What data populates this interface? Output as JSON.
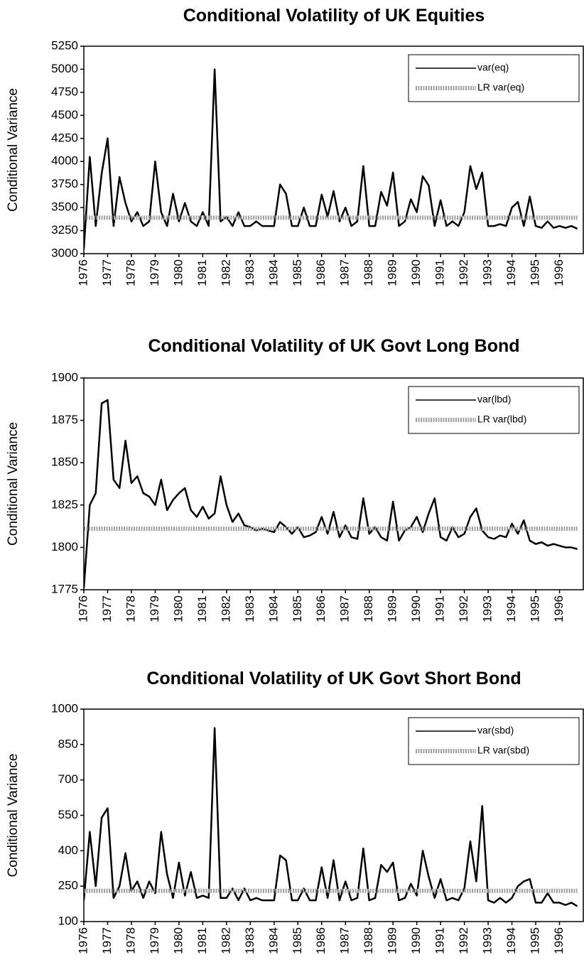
{
  "chart_data": [
    {
      "type": "line",
      "title": "Conditional Volatility of UK Equities",
      "ylabel": "Conditional Variance",
      "categories": [
        "1976",
        null,
        null,
        null,
        "1977",
        null,
        null,
        null,
        "1978",
        null,
        null,
        null,
        "1979",
        null,
        null,
        null,
        "1980",
        null,
        null,
        null,
        "1981",
        null,
        null,
        null,
        "1982",
        null,
        null,
        null,
        "1983",
        null,
        null,
        null,
        "1984",
        null,
        null,
        null,
        "1985",
        null,
        null,
        null,
        "1986",
        null,
        null,
        null,
        "1987",
        null,
        null,
        null,
        "1988",
        null,
        null,
        null,
        "1989",
        null,
        null,
        null,
        "1990",
        null,
        null,
        null,
        "1991",
        null,
        null,
        null,
        "1992",
        null,
        null,
        null,
        "1993",
        null,
        null,
        null,
        "1994",
        null,
        null,
        null,
        "1995",
        null,
        null,
        null,
        "1996",
        null,
        null,
        null
      ],
      "series": [
        {
          "name": "var(eq)",
          "color": "#000000",
          "values": [
            3050,
            4050,
            3300,
            3870,
            4250,
            3300,
            3830,
            3550,
            3350,
            3450,
            3300,
            3350,
            4000,
            3450,
            3300,
            3650,
            3350,
            3550,
            3350,
            3300,
            3450,
            3300,
            5000,
            3350,
            3400,
            3300,
            3450,
            3300,
            3300,
            3350,
            3300,
            3300,
            3300,
            3750,
            3650,
            3300,
            3300,
            3500,
            3300,
            3300,
            3640,
            3400,
            3680,
            3350,
            3500,
            3300,
            3350,
            3950,
            3300,
            3300,
            3670,
            3520,
            3880,
            3300,
            3350,
            3590,
            3450,
            3840,
            3740,
            3300,
            3580,
            3300,
            3350,
            3300,
            3450,
            3950,
            3700,
            3880,
            3300,
            3300,
            3320,
            3300,
            3500,
            3560,
            3300,
            3620,
            3300,
            3280,
            3350,
            3280,
            3300,
            3280,
            3300,
            3270
          ]
        },
        {
          "name": "LR var(eq)",
          "color": "#a0a0a0",
          "pattern": "hatched",
          "values": [
            3390,
            3390,
            3390,
            3390,
            3390,
            3390,
            3390,
            3390,
            3390,
            3390,
            3390,
            3390,
            3390,
            3390,
            3390,
            3390,
            3390,
            3390,
            3390,
            3390,
            3390,
            3390,
            3390,
            3390,
            3390,
            3390,
            3390,
            3390,
            3390,
            3390,
            3390,
            3390,
            3390,
            3390,
            3390,
            3390,
            3390,
            3390,
            3390,
            3390,
            3390,
            3390,
            3390,
            3390,
            3390,
            3390,
            3390,
            3390,
            3390,
            3390,
            3390,
            3390,
            3390,
            3390,
            3390,
            3390,
            3390,
            3390,
            3390,
            3390,
            3390,
            3390,
            3390,
            3390,
            3390,
            3390,
            3390,
            3390,
            3390,
            3390,
            3390,
            3390,
            3390,
            3390,
            3390,
            3390,
            3390,
            3390,
            3390,
            3390,
            3390,
            3390,
            3390,
            3390
          ]
        }
      ],
      "ylim": [
        3000,
        5250
      ],
      "yticks": [
        3000,
        3250,
        3500,
        3750,
        4000,
        4250,
        4500,
        4750,
        5000,
        5250
      ],
      "legend": "upper right"
    },
    {
      "type": "line",
      "title": "Conditional Volatility of UK Govt Long Bond",
      "ylabel": "Conditional Variance",
      "categories": [
        "1976",
        null,
        null,
        null,
        "1977",
        null,
        null,
        null,
        "1978",
        null,
        null,
        null,
        "1979",
        null,
        null,
        null,
        "1980",
        null,
        null,
        null,
        "1981",
        null,
        null,
        null,
        "1982",
        null,
        null,
        null,
        "1983",
        null,
        null,
        null,
        "1984",
        null,
        null,
        null,
        "1985",
        null,
        null,
        null,
        "1986",
        null,
        null,
        null,
        "1987",
        null,
        null,
        null,
        "1988",
        null,
        null,
        null,
        "1989",
        null,
        null,
        null,
        "1990",
        null,
        null,
        null,
        "1991",
        null,
        null,
        null,
        "1992",
        null,
        null,
        null,
        "1993",
        null,
        null,
        null,
        "1994",
        null,
        null,
        null,
        "1995",
        null,
        null,
        null,
        "1996",
        null,
        null,
        null
      ],
      "series": [
        {
          "name": "var(lbd)",
          "color": "#000000",
          "values": [
            1776,
            1825,
            1832,
            1885,
            1887,
            1840,
            1835,
            1863,
            1838,
            1842,
            1832,
            1830,
            1825,
            1840,
            1822,
            1828,
            1832,
            1835,
            1822,
            1818,
            1824,
            1817,
            1820,
            1842,
            1825,
            1815,
            1820,
            1813,
            1812,
            1810,
            1811,
            1810,
            1809,
            1815,
            1812,
            1808,
            1812,
            1806,
            1807,
            1809,
            1818,
            1808,
            1821,
            1806,
            1813,
            1806,
            1805,
            1829,
            1808,
            1812,
            1806,
            1804,
            1827,
            1804,
            1810,
            1812,
            1818,
            1809,
            1820,
            1829,
            1806,
            1804,
            1812,
            1806,
            1808,
            1818,
            1823,
            1810,
            1806,
            1805,
            1807,
            1806,
            1814,
            1808,
            1816,
            1804,
            1802,
            1803,
            1801,
            1802,
            1801,
            1800,
            1800,
            1799
          ]
        },
        {
          "name": "LR var(lbd)",
          "color": "#a0a0a0",
          "pattern": "hatched",
          "values": [
            1811,
            1811,
            1811,
            1811,
            1811,
            1811,
            1811,
            1811,
            1811,
            1811,
            1811,
            1811,
            1811,
            1811,
            1811,
            1811,
            1811,
            1811,
            1811,
            1811,
            1811,
            1811,
            1811,
            1811,
            1811,
            1811,
            1811,
            1811,
            1811,
            1811,
            1811,
            1811,
            1811,
            1811,
            1811,
            1811,
            1811,
            1811,
            1811,
            1811,
            1811,
            1811,
            1811,
            1811,
            1811,
            1811,
            1811,
            1811,
            1811,
            1811,
            1811,
            1811,
            1811,
            1811,
            1811,
            1811,
            1811,
            1811,
            1811,
            1811,
            1811,
            1811,
            1811,
            1811,
            1811,
            1811,
            1811,
            1811,
            1811,
            1811,
            1811,
            1811,
            1811,
            1811,
            1811,
            1811,
            1811,
            1811,
            1811,
            1811,
            1811,
            1811,
            1811,
            1811
          ]
        }
      ],
      "ylim": [
        1775,
        1900
      ],
      "yticks": [
        1775,
        1800,
        1825,
        1850,
        1875,
        1900
      ],
      "legend": "upper right"
    },
    {
      "type": "line",
      "title": "Conditional Volatility of UK Govt Short Bond",
      "ylabel": "Conditional Variance",
      "categories": [
        "1976",
        null,
        null,
        null,
        "1977",
        null,
        null,
        null,
        "1978",
        null,
        null,
        null,
        "1979",
        null,
        null,
        null,
        "1980",
        null,
        null,
        null,
        "1981",
        null,
        null,
        null,
        "1982",
        null,
        null,
        null,
        "1983",
        null,
        null,
        null,
        "1984",
        null,
        null,
        null,
        "1985",
        null,
        null,
        null,
        "1986",
        null,
        null,
        null,
        "1987",
        null,
        null,
        null,
        "1988",
        null,
        null,
        null,
        "1989",
        null,
        null,
        null,
        "1990",
        null,
        null,
        null,
        "1991",
        null,
        null,
        null,
        "1992",
        null,
        null,
        null,
        "1993",
        null,
        null,
        null,
        "1994",
        null,
        null,
        null,
        "1995",
        null,
        null,
        null,
        "1996",
        null,
        null,
        null
      ],
      "series": [
        {
          "name": "var(sbd)",
          "color": "#000000",
          "values": [
            190,
            480,
            250,
            540,
            580,
            200,
            250,
            390,
            230,
            270,
            200,
            270,
            220,
            480,
            300,
            200,
            350,
            210,
            310,
            200,
            210,
            200,
            920,
            200,
            200,
            240,
            190,
            240,
            190,
            200,
            190,
            190,
            190,
            380,
            360,
            190,
            190,
            240,
            190,
            190,
            330,
            200,
            360,
            190,
            270,
            190,
            200,
            410,
            190,
            200,
            340,
            310,
            350,
            190,
            200,
            260,
            210,
            400,
            290,
            200,
            280,
            190,
            200,
            190,
            240,
            440,
            270,
            590,
            190,
            180,
            200,
            180,
            200,
            250,
            270,
            280,
            180,
            180,
            220,
            180,
            180,
            170,
            180,
            165
          ]
        },
        {
          "name": "LR var(sbd)",
          "color": "#a0a0a0",
          "pattern": "hatched",
          "values": [
            230,
            230,
            230,
            230,
            230,
            230,
            230,
            230,
            230,
            230,
            230,
            230,
            230,
            230,
            230,
            230,
            230,
            230,
            230,
            230,
            230,
            230,
            230,
            230,
            230,
            230,
            230,
            230,
            230,
            230,
            230,
            230,
            230,
            230,
            230,
            230,
            230,
            230,
            230,
            230,
            230,
            230,
            230,
            230,
            230,
            230,
            230,
            230,
            230,
            230,
            230,
            230,
            230,
            230,
            230,
            230,
            230,
            230,
            230,
            230,
            230,
            230,
            230,
            230,
            230,
            230,
            230,
            230,
            230,
            230,
            230,
            230,
            230,
            230,
            230,
            230,
            230,
            230,
            230,
            230,
            230,
            230,
            230,
            230
          ]
        }
      ],
      "ylim": [
        100,
        1000
      ],
      "yticks": [
        100,
        250,
        400,
        550,
        700,
        850,
        1000
      ],
      "legend": "upper right"
    }
  ]
}
